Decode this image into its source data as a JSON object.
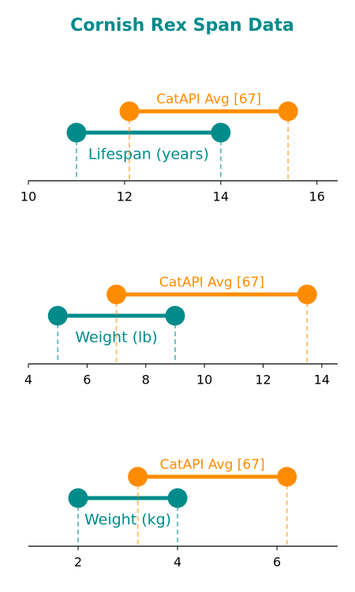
{
  "title": "Cornish Rex Span Data",
  "chart_data": [
    {
      "type": "dumbbell",
      "xlim": [
        10,
        16.43
      ],
      "xticks": [
        10,
        12,
        14,
        16
      ],
      "series": [
        {
          "name": "Lifespan (years)",
          "color": "#008b8b",
          "values": [
            11,
            14
          ]
        },
        {
          "name": "CatAPI Avg [67]",
          "color": "#ff8c00",
          "values": [
            12.1,
            15.4
          ]
        }
      ]
    },
    {
      "type": "dumbbell",
      "xlim": [
        4,
        14.54
      ],
      "xticks": [
        4,
        6,
        8,
        10,
        12,
        14
      ],
      "series": [
        {
          "name": "Weight (lb)",
          "color": "#008b8b",
          "values": [
            5,
            9
          ]
        },
        {
          "name": "CatAPI Avg [67]",
          "color": "#ff8c00",
          "values": [
            7,
            13.5
          ]
        }
      ]
    },
    {
      "type": "dumbbell",
      "xlim": [
        1,
        7.22
      ],
      "xticks": [
        2,
        4,
        6
      ],
      "series": [
        {
          "name": "Weight (kg)",
          "color": "#008b8b",
          "values": [
            2,
            4
          ]
        },
        {
          "name": "CatAPI Avg [67]",
          "color": "#ff8c00",
          "values": [
            3.2,
            6.2
          ]
        }
      ]
    }
  ]
}
